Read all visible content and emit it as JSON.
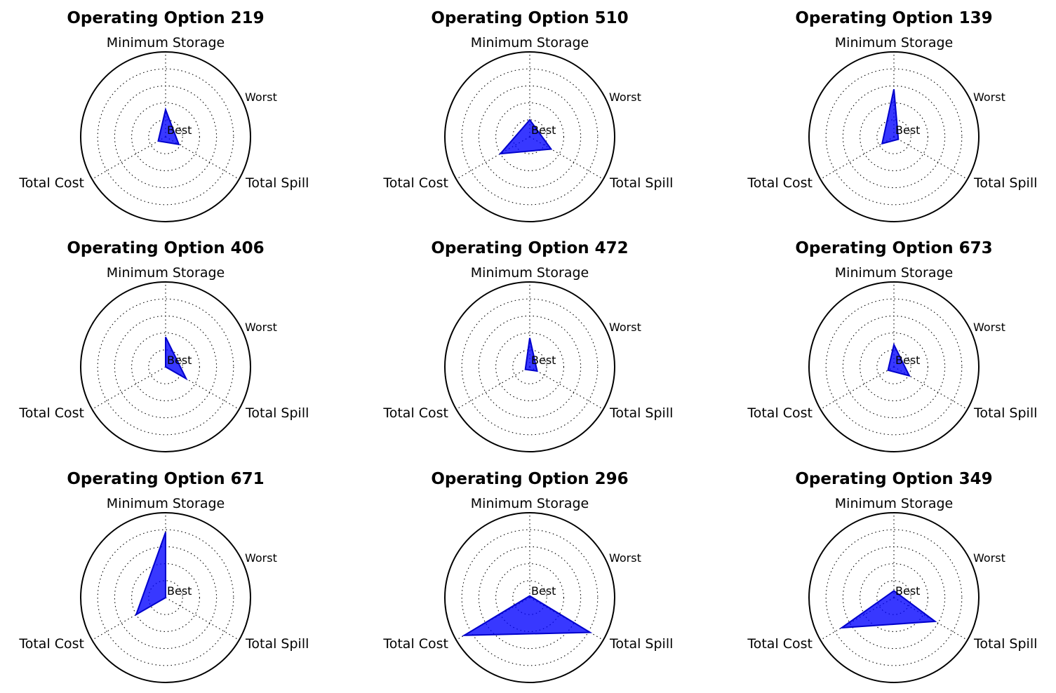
{
  "chart_data": [
    {
      "type": "radar",
      "title": "Operating Option 219",
      "axes": [
        "Minimum Storage",
        "Total Spill",
        "Total Cost"
      ],
      "rlabels": [
        "Best",
        "Worst"
      ],
      "rlim": [
        0,
        5
      ],
      "grid": true,
      "values": [
        1.6,
        0.9,
        0.5
      ]
    },
    {
      "type": "radar",
      "title": "Operating Option 510",
      "axes": [
        "Minimum Storage",
        "Total Spill",
        "Total Cost"
      ],
      "rlabels": [
        "Best",
        "Worst"
      ],
      "rlim": [
        0,
        5
      ],
      "grid": true,
      "values": [
        1.0,
        1.45,
        2.0
      ]
    },
    {
      "type": "radar",
      "title": "Operating Option 139",
      "axes": [
        "Minimum Storage",
        "Total Spill",
        "Total Cost"
      ],
      "rlabels": [
        "Best",
        "Worst"
      ],
      "rlim": [
        0,
        5
      ],
      "grid": true,
      "values": [
        2.8,
        0.3,
        0.8
      ]
    },
    {
      "type": "radar",
      "title": "Operating Option 406",
      "axes": [
        "Minimum Storage",
        "Total Spill",
        "Total Cost"
      ],
      "rlabels": [
        "Best",
        "Worst"
      ],
      "rlim": [
        0,
        5
      ],
      "grid": true,
      "values": [
        1.75,
        1.4,
        0.0
      ]
    },
    {
      "type": "radar",
      "title": "Operating Option 472",
      "axes": [
        "Minimum Storage",
        "Total Spill",
        "Total Cost"
      ],
      "rlabels": [
        "Best",
        "Worst"
      ],
      "rlim": [
        0,
        5
      ],
      "grid": true,
      "values": [
        1.7,
        0.5,
        0.3
      ]
    },
    {
      "type": "radar",
      "title": "Operating Option 673",
      "axes": [
        "Minimum Storage",
        "Total Spill",
        "Total Cost"
      ],
      "rlabels": [
        "Best",
        "Worst"
      ],
      "rlim": [
        0,
        5
      ],
      "grid": true,
      "values": [
        1.3,
        1.05,
        0.4
      ]
    },
    {
      "type": "radar",
      "title": "Operating Option 671",
      "axes": [
        "Minimum Storage",
        "Total Spill",
        "Total Cost"
      ],
      "rlabels": [
        "Best",
        "Worst"
      ],
      "rlim": [
        0,
        5
      ],
      "grid": true,
      "values": [
        3.85,
        0.0,
        2.0
      ]
    },
    {
      "type": "radar",
      "title": "Operating Option 296",
      "axes": [
        "Minimum Storage",
        "Total Spill",
        "Total Cost"
      ],
      "rlabels": [
        "Best",
        "Worst"
      ],
      "rlim": [
        0,
        5
      ],
      "grid": true,
      "values": [
        0.1,
        4.1,
        4.45
      ]
    },
    {
      "type": "radar",
      "title": "Operating Option 349",
      "axes": [
        "Minimum Storage",
        "Total Spill",
        "Total Cost"
      ],
      "rlabels": [
        "Best",
        "Worst"
      ],
      "rlim": [
        0,
        5
      ],
      "grid": true,
      "values": [
        0.4,
        2.8,
        3.55
      ]
    }
  ]
}
